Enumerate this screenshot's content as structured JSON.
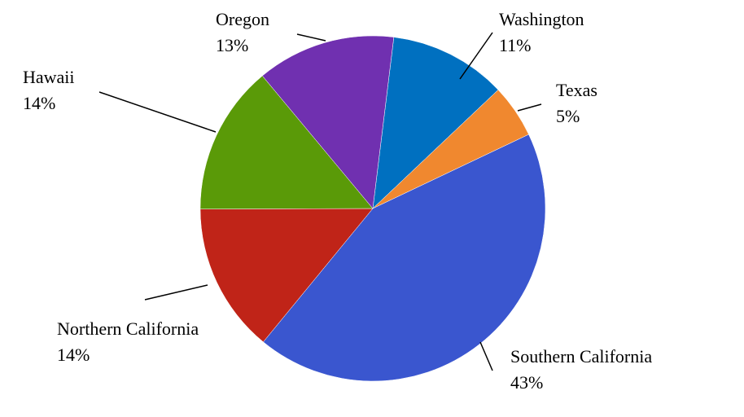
{
  "chart_data": {
    "type": "pie",
    "categories": [
      "Washington",
      "Texas",
      "Southern California",
      "Northern California",
      "Hawaii",
      "Oregon"
    ],
    "values": [
      11,
      5,
      43,
      14,
      14,
      13
    ],
    "value_labels": [
      "11%",
      "5%",
      "43%",
      "14%",
      "14%",
      "13%"
    ],
    "colors": [
      "#0070c0",
      "#f0882f",
      "#3a56cf",
      "#c02418",
      "#5a9a08",
      "#7030b0"
    ]
  }
}
